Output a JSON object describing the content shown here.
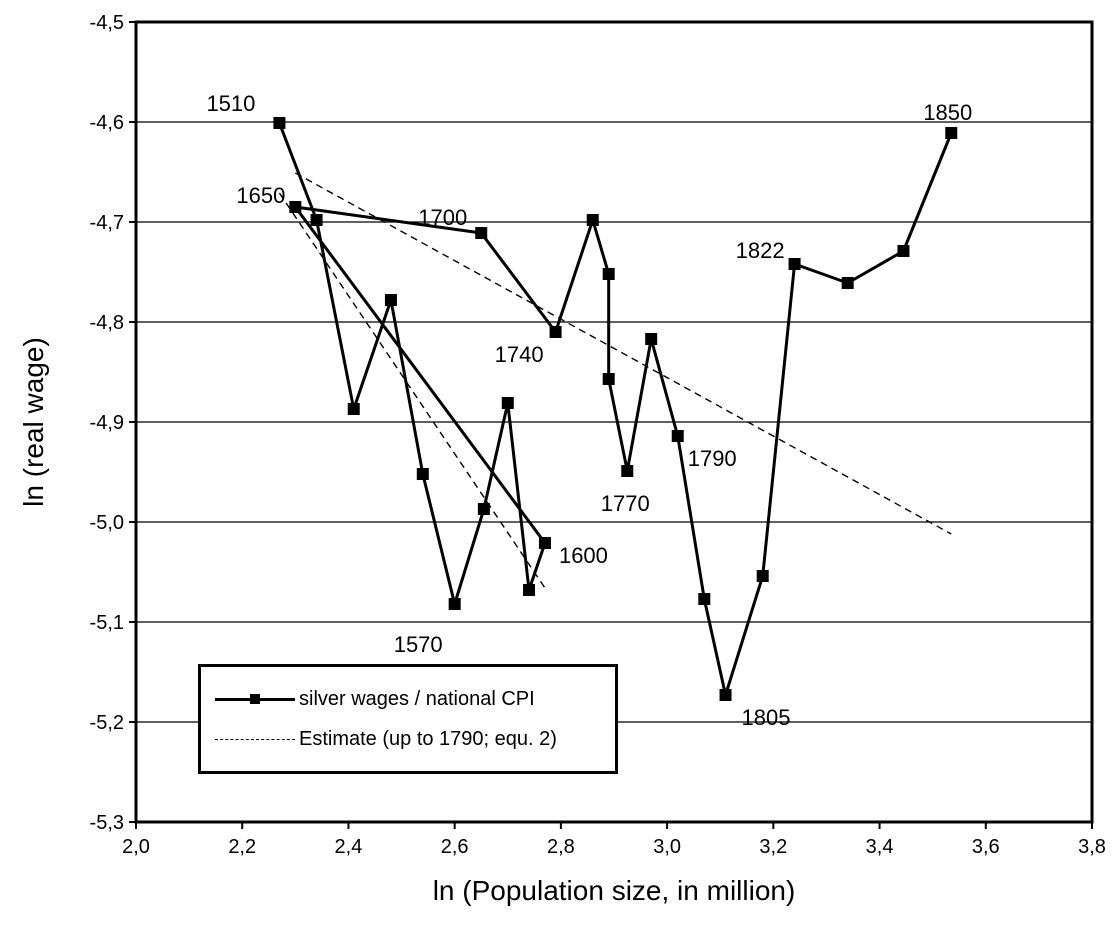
{
  "chart_data": {
    "type": "line",
    "xlabel": "ln (Population size, in million)",
    "ylabel": "ln (real wage)",
    "xlim": [
      2.0,
      3.8
    ],
    "ylim": [
      -5.3,
      -4.5
    ],
    "x_ticks": [
      "2,0",
      "2,2",
      "2,4",
      "2,6",
      "2,8",
      "3,0",
      "3,2",
      "3,4",
      "3,6",
      "3,8"
    ],
    "y_ticks": [
      "-4,5",
      "-4,6",
      "-4,7",
      "-4,8",
      "-4,9",
      "-5,0",
      "-5,1",
      "-5,2",
      "-5,3"
    ],
    "grid": "horizontal",
    "series": [
      {
        "name": "silver wages / national CPI",
        "style": "solid-square-markers",
        "color": "#000000",
        "points": [
          [
            2.27,
            -4.601
          ],
          [
            2.34,
            -4.698
          ],
          [
            2.41,
            -4.887
          ],
          [
            2.48,
            -4.778
          ],
          [
            2.54,
            -4.952
          ],
          [
            2.6,
            -5.082
          ],
          [
            2.655,
            -4.987
          ],
          [
            2.7,
            -4.881
          ],
          [
            2.74,
            -5.068
          ],
          [
            2.77,
            -5.021
          ],
          [
            2.3,
            -4.685
          ],
          [
            2.65,
            -4.711
          ],
          [
            2.79,
            -4.81
          ],
          [
            2.86,
            -4.698
          ],
          [
            2.89,
            -4.752
          ],
          [
            2.89,
            -4.857
          ],
          [
            2.925,
            -4.949
          ],
          [
            2.97,
            -4.817
          ],
          [
            3.02,
            -4.914
          ],
          [
            3.07,
            -5.077
          ],
          [
            3.11,
            -5.173
          ],
          [
            3.18,
            -5.054
          ],
          [
            3.24,
            -4.742
          ],
          [
            3.34,
            -4.761
          ],
          [
            3.445,
            -4.729
          ],
          [
            3.535,
            -4.611
          ]
        ]
      },
      {
        "name": "Estimate (up to 1790; equ. 2)",
        "style": "dashed",
        "color": "#000000",
        "segments": [
          [
            [
              2.3,
              -4.651
            ],
            [
              3.535,
              -5.012
            ]
          ],
          [
            [
              2.27,
              -4.671
            ],
            [
              2.77,
              -5.066
            ]
          ]
        ]
      }
    ],
    "annotations": [
      {
        "text": "1510",
        "x": 2.27,
        "y": -4.601
      },
      {
        "text": "1650",
        "x": 2.3,
        "y": -4.685
      },
      {
        "text": "1700",
        "x": 2.65,
        "y": -4.711
      },
      {
        "text": "1740",
        "x": 2.79,
        "y": -4.81
      },
      {
        "text": "1770",
        "x": 2.925,
        "y": -4.949
      },
      {
        "text": "1790",
        "x": 3.02,
        "y": -4.914
      },
      {
        "text": "1600",
        "x": 2.77,
        "y": -5.021
      },
      {
        "text": "1570",
        "x": 2.6,
        "y": -5.082
      },
      {
        "text": "1805",
        "x": 3.11,
        "y": -5.173
      },
      {
        "text": "1822",
        "x": 3.24,
        "y": -4.742
      },
      {
        "text": "1850",
        "x": 3.535,
        "y": -4.611
      }
    ],
    "legend": {
      "placement": "bottom-left",
      "entries": [
        "silver wages / national CPI",
        "Estimate (up to 1790; equ. 2)"
      ]
    }
  }
}
